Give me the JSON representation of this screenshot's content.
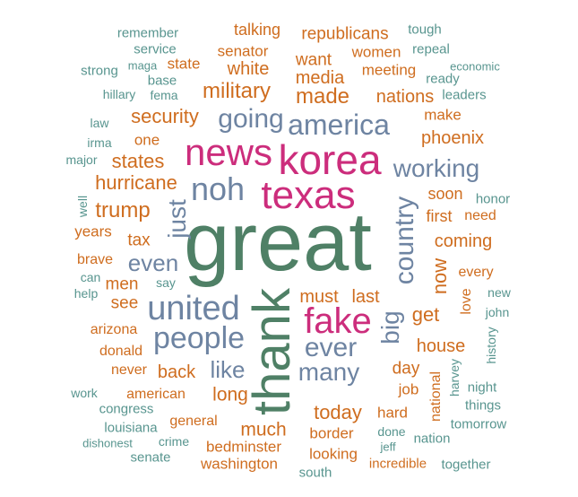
{
  "colors": {
    "green": "#4f8066",
    "orange": "#cf6d1f",
    "slate": "#6e84a2",
    "magenta": "#cc2d7c",
    "teal": "#58958f"
  },
  "words": [
    {
      "text": "great",
      "color": "green"
    },
    {
      "text": "thank",
      "color": "green"
    },
    {
      "text": "korea",
      "color": "magenta"
    },
    {
      "text": "news",
      "color": "magenta"
    },
    {
      "text": "texas",
      "color": "magenta"
    },
    {
      "text": "fake",
      "color": "magenta"
    },
    {
      "text": "united",
      "color": "slate"
    },
    {
      "text": "people",
      "color": "slate"
    },
    {
      "text": "america",
      "color": "slate"
    },
    {
      "text": "going",
      "color": "slate"
    },
    {
      "text": "noh",
      "color": "slate"
    },
    {
      "text": "just",
      "color": "slate"
    },
    {
      "text": "country",
      "color": "slate"
    },
    {
      "text": "working",
      "color": "slate"
    },
    {
      "text": "big",
      "color": "slate"
    },
    {
      "text": "ever",
      "color": "slate"
    },
    {
      "text": "many",
      "color": "slate"
    },
    {
      "text": "even",
      "color": "slate"
    },
    {
      "text": "like",
      "color": "slate"
    },
    {
      "text": "now",
      "color": "orange"
    },
    {
      "text": "military",
      "color": "orange"
    },
    {
      "text": "security",
      "color": "orange"
    },
    {
      "text": "made",
      "color": "orange"
    },
    {
      "text": "trump",
      "color": "orange"
    },
    {
      "text": "states",
      "color": "orange"
    },
    {
      "text": "hurricane",
      "color": "orange"
    },
    {
      "text": "get",
      "color": "orange"
    },
    {
      "text": "today",
      "color": "orange"
    },
    {
      "text": "much",
      "color": "orange"
    },
    {
      "text": "long",
      "color": "orange"
    },
    {
      "text": "back",
      "color": "orange"
    },
    {
      "text": "must",
      "color": "orange"
    },
    {
      "text": "last",
      "color": "orange"
    },
    {
      "text": "house",
      "color": "orange"
    },
    {
      "text": "coming",
      "color": "orange"
    },
    {
      "text": "phoenix",
      "color": "orange"
    },
    {
      "text": "media",
      "color": "orange"
    },
    {
      "text": "nations",
      "color": "orange"
    },
    {
      "text": "want",
      "color": "orange"
    },
    {
      "text": "white",
      "color": "orange"
    },
    {
      "text": "republicans",
      "color": "orange"
    },
    {
      "text": "senator",
      "color": "orange"
    },
    {
      "text": "talking",
      "color": "orange"
    },
    {
      "text": "women",
      "color": "orange"
    },
    {
      "text": "meeting",
      "color": "orange"
    },
    {
      "text": "make",
      "color": "orange"
    },
    {
      "text": "state",
      "color": "orange"
    },
    {
      "text": "one",
      "color": "orange"
    },
    {
      "text": "tax",
      "color": "orange"
    },
    {
      "text": "years",
      "color": "orange"
    },
    {
      "text": "men",
      "color": "orange"
    },
    {
      "text": "see",
      "color": "orange"
    },
    {
      "text": "brave",
      "color": "orange"
    },
    {
      "text": "soon",
      "color": "orange"
    },
    {
      "text": "first",
      "color": "orange"
    },
    {
      "text": "need",
      "color": "orange"
    },
    {
      "text": "every",
      "color": "orange"
    },
    {
      "text": "love",
      "color": "orange"
    },
    {
      "text": "day",
      "color": "orange"
    },
    {
      "text": "job",
      "color": "orange"
    },
    {
      "text": "hard",
      "color": "orange"
    },
    {
      "text": "national",
      "color": "orange"
    },
    {
      "text": "border",
      "color": "orange"
    },
    {
      "text": "looking",
      "color": "orange"
    },
    {
      "text": "general",
      "color": "orange"
    },
    {
      "text": "bedminster",
      "color": "orange"
    },
    {
      "text": "washington",
      "color": "orange"
    },
    {
      "text": "arizona",
      "color": "orange"
    },
    {
      "text": "donald",
      "color": "orange"
    },
    {
      "text": "never",
      "color": "orange"
    },
    {
      "text": "american",
      "color": "orange"
    },
    {
      "text": "incredible",
      "color": "orange"
    },
    {
      "text": "remember",
      "color": "teal"
    },
    {
      "text": "service",
      "color": "teal"
    },
    {
      "text": "strong",
      "color": "teal"
    },
    {
      "text": "maga",
      "color": "teal"
    },
    {
      "text": "base",
      "color": "teal"
    },
    {
      "text": "hillary",
      "color": "teal"
    },
    {
      "text": "fema",
      "color": "teal"
    },
    {
      "text": "law",
      "color": "teal"
    },
    {
      "text": "irma",
      "color": "teal"
    },
    {
      "text": "major",
      "color": "teal"
    },
    {
      "text": "well",
      "color": "teal"
    },
    {
      "text": "can",
      "color": "teal"
    },
    {
      "text": "help",
      "color": "teal"
    },
    {
      "text": "say",
      "color": "teal"
    },
    {
      "text": "tough",
      "color": "teal"
    },
    {
      "text": "repeal",
      "color": "teal"
    },
    {
      "text": "economic",
      "color": "teal"
    },
    {
      "text": "ready",
      "color": "teal"
    },
    {
      "text": "leaders",
      "color": "teal"
    },
    {
      "text": "honor",
      "color": "teal"
    },
    {
      "text": "new",
      "color": "teal"
    },
    {
      "text": "john",
      "color": "teal"
    },
    {
      "text": "history",
      "color": "teal"
    },
    {
      "text": "night",
      "color": "teal"
    },
    {
      "text": "harvey",
      "color": "teal"
    },
    {
      "text": "things",
      "color": "teal"
    },
    {
      "text": "tomorrow",
      "color": "teal"
    },
    {
      "text": "done",
      "color": "teal"
    },
    {
      "text": "nation",
      "color": "teal"
    },
    {
      "text": "jeff",
      "color": "teal"
    },
    {
      "text": "together",
      "color": "teal"
    },
    {
      "text": "work",
      "color": "teal"
    },
    {
      "text": "congress",
      "color": "teal"
    },
    {
      "text": "louisiana",
      "color": "teal"
    },
    {
      "text": "dishonest",
      "color": "teal"
    },
    {
      "text": "crime",
      "color": "teal"
    },
    {
      "text": "senate",
      "color": "teal"
    },
    {
      "text": "south",
      "color": "teal"
    }
  ]
}
